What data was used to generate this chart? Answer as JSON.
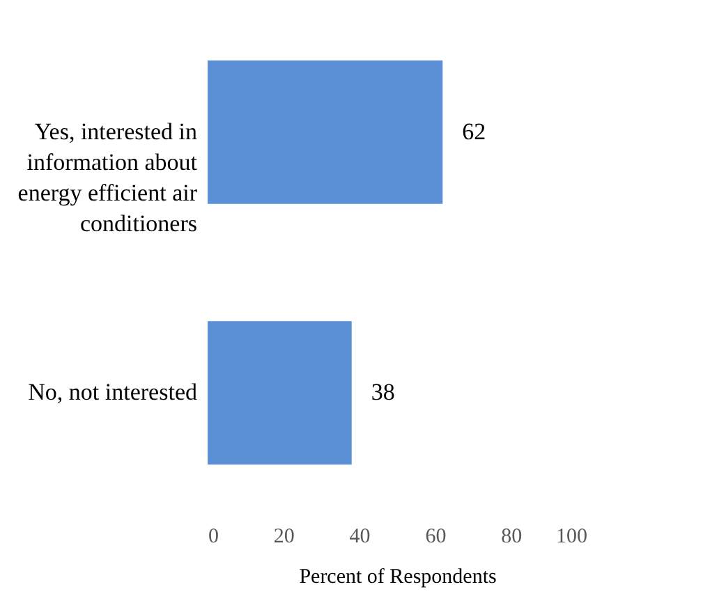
{
  "chart_data": {
    "type": "bar",
    "orientation": "horizontal",
    "xlabel": "Percent of Respondents",
    "categories": [
      "Yes, interested in information about energy efficient air conditioners",
      "No, not interested"
    ],
    "values": [
      62,
      38
    ],
    "color": "#5b8fd6",
    "data_labels": true,
    "xlim": [
      0,
      100
    ],
    "xticks": [
      0,
      20,
      40,
      60,
      80,
      100
    ],
    "grid": false
  }
}
